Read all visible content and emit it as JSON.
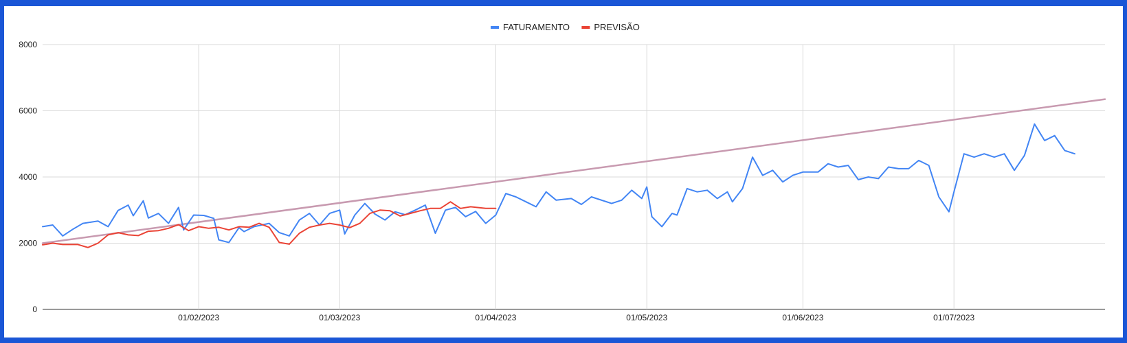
{
  "chart_data": {
    "type": "line",
    "title": "",
    "xlabel": "",
    "ylabel": "",
    "x_start": "2023-01-01",
    "x_end": "2023-07-31",
    "ylim": [
      0,
      8000
    ],
    "y_ticks": [
      0,
      2000,
      4000,
      6000,
      8000
    ],
    "y_tick_labels": [
      "0",
      "2000",
      "4000",
      "6000",
      "8000"
    ],
    "x_ticks": [
      "2023-02-01",
      "2023-03-01",
      "2023-04-01",
      "2023-05-01",
      "2023-06-01",
      "2023-07-01"
    ],
    "x_tick_labels": [
      "01/02/2023",
      "01/03/2023",
      "01/04/2023",
      "01/05/2023",
      "01/06/2023",
      "01/07/2023"
    ],
    "grid": true,
    "legend_position": "top-center",
    "series": [
      {
        "name": "FATURAMENTO",
        "color": "#4285f4",
        "points": [
          [
            "2023-01-01",
            2500
          ],
          [
            "2023-01-03",
            2550
          ],
          [
            "2023-01-05",
            2220
          ],
          [
            "2023-01-07",
            2420
          ],
          [
            "2023-01-09",
            2600
          ],
          [
            "2023-01-12",
            2670
          ],
          [
            "2023-01-14",
            2500
          ],
          [
            "2023-01-16",
            2990
          ],
          [
            "2023-01-18",
            3150
          ],
          [
            "2023-01-19",
            2830
          ],
          [
            "2023-01-21",
            3280
          ],
          [
            "2023-01-22",
            2760
          ],
          [
            "2023-01-24",
            2900
          ],
          [
            "2023-01-26",
            2600
          ],
          [
            "2023-01-28",
            3080
          ],
          [
            "2023-01-29",
            2400
          ],
          [
            "2023-01-31",
            2850
          ],
          [
            "2023-02-02",
            2840
          ],
          [
            "2023-02-04",
            2750
          ],
          [
            "2023-02-05",
            2100
          ],
          [
            "2023-02-07",
            2020
          ],
          [
            "2023-02-09",
            2470
          ],
          [
            "2023-02-10",
            2350
          ],
          [
            "2023-02-12",
            2500
          ],
          [
            "2023-02-15",
            2600
          ],
          [
            "2023-02-17",
            2320
          ],
          [
            "2023-02-19",
            2220
          ],
          [
            "2023-02-21",
            2700
          ],
          [
            "2023-02-23",
            2900
          ],
          [
            "2023-02-25",
            2550
          ],
          [
            "2023-02-27",
            2900
          ],
          [
            "2023-03-01",
            3000
          ],
          [
            "2023-03-02",
            2280
          ],
          [
            "2023-03-04",
            2850
          ],
          [
            "2023-03-06",
            3200
          ],
          [
            "2023-03-08",
            2880
          ],
          [
            "2023-03-10",
            2700
          ],
          [
            "2023-03-12",
            2950
          ],
          [
            "2023-03-14",
            2860
          ],
          [
            "2023-03-16",
            3000
          ],
          [
            "2023-03-18",
            3150
          ],
          [
            "2023-03-20",
            2300
          ],
          [
            "2023-03-22",
            3000
          ],
          [
            "2023-03-24",
            3080
          ],
          [
            "2023-03-26",
            2800
          ],
          [
            "2023-03-28",
            2960
          ],
          [
            "2023-03-30",
            2600
          ],
          [
            "2023-04-01",
            2850
          ],
          [
            "2023-04-03",
            3500
          ],
          [
            "2023-04-05",
            3400
          ],
          [
            "2023-04-07",
            3250
          ],
          [
            "2023-04-09",
            3100
          ],
          [
            "2023-04-11",
            3550
          ],
          [
            "2023-04-13",
            3300
          ],
          [
            "2023-04-16",
            3350
          ],
          [
            "2023-04-18",
            3170
          ],
          [
            "2023-04-20",
            3400
          ],
          [
            "2023-04-24",
            3200
          ],
          [
            "2023-04-26",
            3300
          ],
          [
            "2023-04-28",
            3600
          ],
          [
            "2023-04-30",
            3350
          ],
          [
            "2023-05-01",
            3700
          ],
          [
            "2023-05-02",
            2800
          ],
          [
            "2023-05-04",
            2500
          ],
          [
            "2023-05-06",
            2900
          ],
          [
            "2023-05-07",
            2850
          ],
          [
            "2023-05-09",
            3650
          ],
          [
            "2023-05-11",
            3550
          ],
          [
            "2023-05-13",
            3600
          ],
          [
            "2023-05-15",
            3350
          ],
          [
            "2023-05-17",
            3550
          ],
          [
            "2023-05-18",
            3250
          ],
          [
            "2023-05-20",
            3650
          ],
          [
            "2023-05-22",
            4600
          ],
          [
            "2023-05-24",
            4050
          ],
          [
            "2023-05-26",
            4200
          ],
          [
            "2023-05-28",
            3850
          ],
          [
            "2023-05-30",
            4050
          ],
          [
            "2023-06-01",
            4150
          ],
          [
            "2023-06-04",
            4150
          ],
          [
            "2023-06-06",
            4400
          ],
          [
            "2023-06-08",
            4300
          ],
          [
            "2023-06-10",
            4350
          ],
          [
            "2023-06-12",
            3920
          ],
          [
            "2023-06-14",
            4000
          ],
          [
            "2023-06-16",
            3950
          ],
          [
            "2023-06-18",
            4300
          ],
          [
            "2023-06-20",
            4250
          ],
          [
            "2023-06-22",
            4250
          ],
          [
            "2023-06-24",
            4500
          ],
          [
            "2023-06-26",
            4350
          ],
          [
            "2023-06-28",
            3400
          ],
          [
            "2023-06-30",
            2950
          ],
          [
            "2023-07-01",
            3550
          ],
          [
            "2023-07-03",
            4700
          ],
          [
            "2023-07-05",
            4600
          ],
          [
            "2023-07-07",
            4700
          ],
          [
            "2023-07-09",
            4600
          ],
          [
            "2023-07-11",
            4700
          ],
          [
            "2023-07-13",
            4200
          ],
          [
            "2023-07-15",
            4650
          ],
          [
            "2023-07-17",
            5600
          ],
          [
            "2023-07-19",
            5100
          ],
          [
            "2023-07-21",
            5250
          ],
          [
            "2023-07-23",
            4800
          ],
          [
            "2023-07-25",
            4700
          ]
        ]
      },
      {
        "name": "PREVISÃO",
        "color": "#ea4335",
        "points": [
          [
            "2023-01-01",
            1950
          ],
          [
            "2023-01-03",
            2000
          ],
          [
            "2023-01-05",
            1960
          ],
          [
            "2023-01-08",
            1960
          ],
          [
            "2023-01-10",
            1870
          ],
          [
            "2023-01-12",
            2000
          ],
          [
            "2023-01-14",
            2250
          ],
          [
            "2023-01-16",
            2320
          ],
          [
            "2023-01-18",
            2250
          ],
          [
            "2023-01-20",
            2230
          ],
          [
            "2023-01-22",
            2360
          ],
          [
            "2023-01-24",
            2380
          ],
          [
            "2023-01-26",
            2450
          ],
          [
            "2023-01-28",
            2560
          ],
          [
            "2023-01-30",
            2380
          ],
          [
            "2023-02-01",
            2500
          ],
          [
            "2023-02-03",
            2450
          ],
          [
            "2023-02-05",
            2480
          ],
          [
            "2023-02-07",
            2400
          ],
          [
            "2023-02-09",
            2500
          ],
          [
            "2023-02-11",
            2480
          ],
          [
            "2023-02-13",
            2600
          ],
          [
            "2023-02-15",
            2480
          ],
          [
            "2023-02-17",
            2020
          ],
          [
            "2023-02-19",
            1970
          ],
          [
            "2023-02-21",
            2300
          ],
          [
            "2023-02-23",
            2480
          ],
          [
            "2023-02-25",
            2550
          ],
          [
            "2023-02-27",
            2600
          ],
          [
            "2023-03-01",
            2550
          ],
          [
            "2023-03-03",
            2470
          ],
          [
            "2023-03-05",
            2600
          ],
          [
            "2023-03-07",
            2900
          ],
          [
            "2023-03-09",
            3000
          ],
          [
            "2023-03-11",
            2980
          ],
          [
            "2023-03-13",
            2820
          ],
          [
            "2023-03-15",
            2900
          ],
          [
            "2023-03-17",
            2980
          ],
          [
            "2023-03-19",
            3050
          ],
          [
            "2023-03-21",
            3050
          ],
          [
            "2023-03-23",
            3250
          ],
          [
            "2023-03-25",
            3050
          ],
          [
            "2023-03-27",
            3100
          ],
          [
            "2023-03-30",
            3050
          ],
          [
            "2023-04-01",
            3050
          ]
        ]
      },
      {
        "name": "",
        "color": "#c89ab0",
        "points": [
          [
            "2023-01-01",
            2000
          ],
          [
            "2023-07-31",
            6350
          ]
        ]
      }
    ]
  }
}
